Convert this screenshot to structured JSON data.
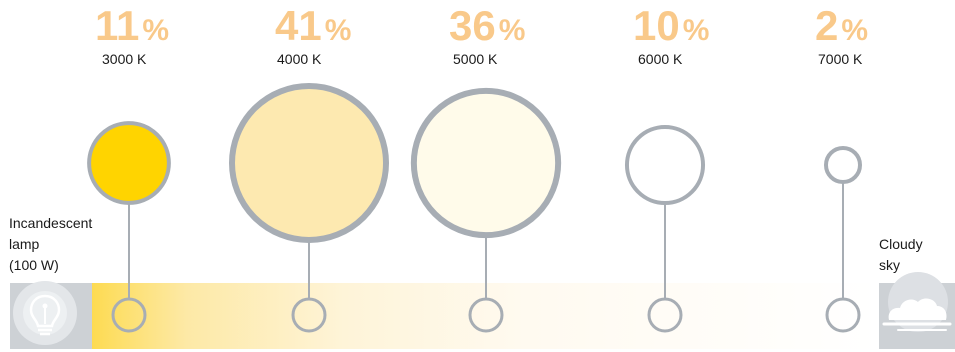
{
  "chart_data": {
    "type": "bubble-distribution",
    "categories": [
      "3000 K",
      "4000 K",
      "5000 K",
      "6000 K",
      "7000 K"
    ],
    "values": [
      11,
      41,
      36,
      10,
      2
    ],
    "unit": "%",
    "colors": {
      "fills": [
        "#ffd400",
        "#fde9b0",
        "#fffbea",
        "#ffffff",
        "#ffffff"
      ],
      "percent_text": "#f9c98a",
      "outline": "#a7adb4",
      "gradient_warm": "#fddb52",
      "icon_background": "#cdd1d5"
    }
  },
  "left_end": {
    "label_lines": [
      "Incandescent",
      "lamp",
      "(100 W)"
    ],
    "icon": "lightbulb-icon"
  },
  "right_end": {
    "label_lines": [
      "Cloudy",
      "sky"
    ],
    "icon": "cloud-icon"
  }
}
